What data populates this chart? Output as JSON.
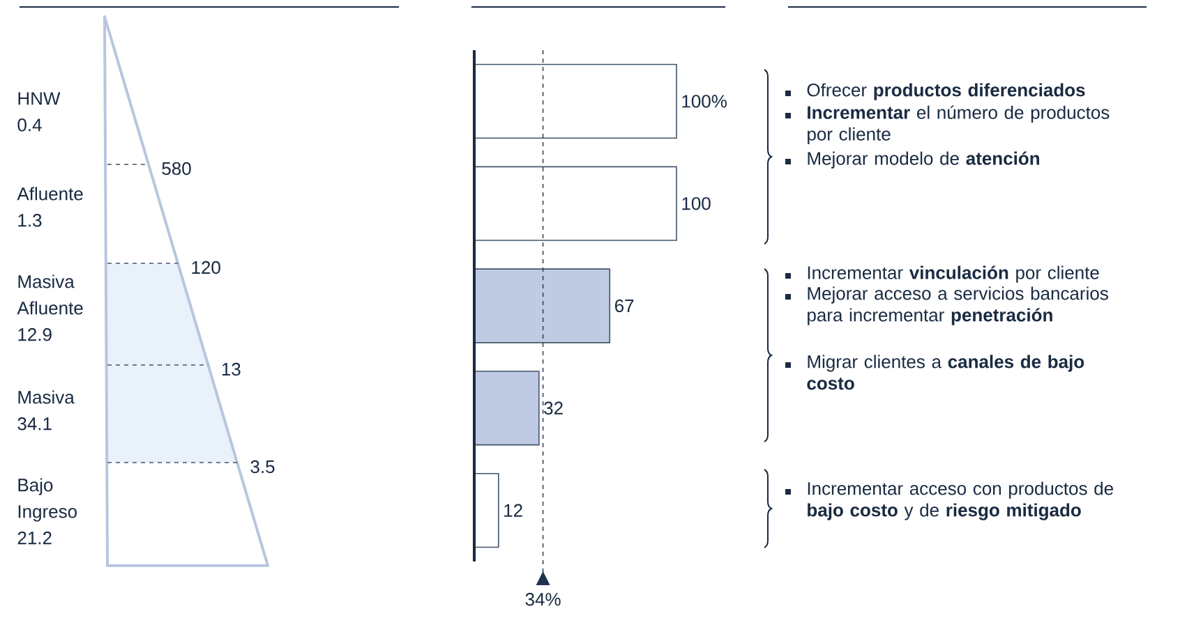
{
  "chart_data": [
    {
      "type": "other",
      "categories": [
        "HNW",
        "Afluente",
        "Masiva Afluente",
        "Masiva",
        "Bajo Ingreso"
      ],
      "values": [
        0.4,
        1.3,
        12.9,
        34.1,
        21.2
      ],
      "data_labels": true,
      "colors": [
        "#ffffff",
        "#ffffff",
        "#e9f1fb",
        "#e9f1fb",
        "#ffffff"
      ],
      "annotations": [
        "580",
        "120",
        "13",
        "3.5"
      ]
    },
    {
      "type": "bar",
      "orientation": "horizontal",
      "categories": [
        null,
        null,
        null,
        null,
        null
      ],
      "values": [
        100,
        100,
        67,
        32,
        12
      ],
      "value_labels": [
        "100%",
        "100",
        "67",
        "32",
        "12"
      ],
      "colors": [
        "#ffffff",
        "#ffffff",
        "#bfcbe2",
        "#bfcbe2",
        "#ffffff"
      ],
      "ref_lines": [
        {
          "axis": "x",
          "value": 34,
          "label": "34%",
          "line_style": "dashed",
          "color": "#1f3350"
        }
      ]
    },
    {
      "type": "other",
      "annotations": [
        "Ofrecer **productos diferenciados**",
        "**Incrementar** el número de productos por cliente",
        "Mejorar modelo de **atención**",
        "Incrementar **vinculación** por cliente",
        "Mejorar acceso a servicios bancarios para incrementar **penetración**",
        "Migrar clientes a **canales de bajo costo**",
        "Incrementar acceso con productos de **bajo costo** y de **riesgo mitigado**"
      ]
    }
  ]
}
